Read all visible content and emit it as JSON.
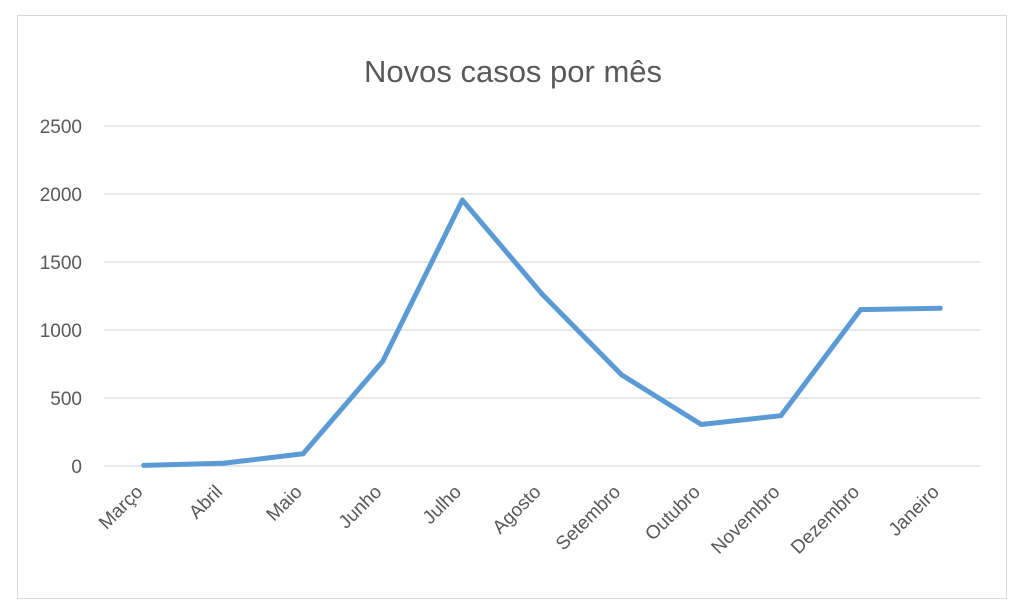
{
  "chart_data": {
    "type": "line",
    "title": "Novos casos por mês",
    "xlabel": "",
    "ylabel": "",
    "categories": [
      "Março",
      "Abril",
      "Maio",
      "Junho",
      "Julho",
      "Agosto",
      "Setembro",
      "Outubro",
      "Novembro",
      "Dezembro",
      "Janeiro"
    ],
    "series": [
      {
        "values": [
          5,
          20,
          90,
          770,
          1955,
          1265,
          670,
          305,
          370,
          1150,
          1160
        ],
        "color": "#5b9bd5"
      }
    ],
    "ylim": [
      0,
      2500
    ],
    "yticks": [
      "0",
      "500",
      "1000",
      "1500",
      "2000",
      "2500"
    ],
    "grid": true,
    "legend": "none"
  }
}
